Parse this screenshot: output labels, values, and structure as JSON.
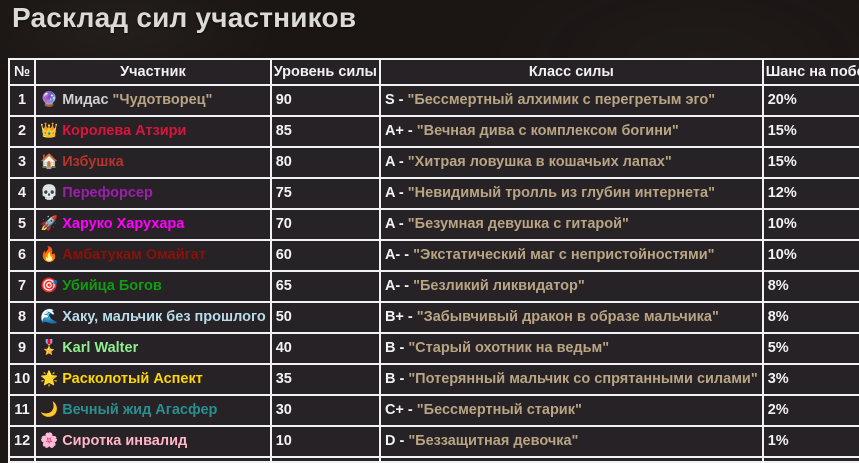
{
  "title": "Расклад сил участников",
  "table": {
    "headers": [
      "№",
      "Участник",
      "Уровень силы",
      "Класс силы",
      "Шанс на победу"
    ],
    "colors": {
      "border": "#f2f2f2",
      "cell_background": "#272226",
      "header_text": "#f2f2f2",
      "description_tan": "#b9a583"
    },
    "rows": [
      {
        "num": "1",
        "icon": "🔮",
        "icon_name": "crystal-ball-icon",
        "name": "Мидас",
        "name_color": "#cfcfcf",
        "nickname": "\"Чудотворец\"",
        "nickname_color": "#b9a583",
        "level": "90",
        "grade": "S",
        "desc": "\"Бессмертный алхимик с перегретым эго\"",
        "chance": "20%"
      },
      {
        "num": "2",
        "icon": "👑",
        "icon_name": "crown-icon",
        "name": "Королева Атзири",
        "name_color": "#dc143c",
        "nickname": "",
        "nickname_color": "",
        "level": "85",
        "grade": "A+",
        "desc": "\"Вечная дива с комплексом богини\"",
        "chance": "15%"
      },
      {
        "num": "3",
        "icon": "🏠",
        "icon_name": "house-icon",
        "name": "Избушка",
        "name_color": "#b5342c",
        "nickname": "",
        "nickname_color": "",
        "level": "80",
        "grade": "A",
        "desc": "\"Хитрая ловушка в кошачьих лапах\"",
        "chance": "15%"
      },
      {
        "num": "4",
        "icon": "💀",
        "icon_name": "skull-icon",
        "name": "Перефорсер",
        "name_color": "#9c1fae",
        "nickname": "",
        "nickname_color": "",
        "level": "75",
        "grade": "A",
        "desc": "\"Невидимый тролль из глубин интернета\"",
        "chance": "12%"
      },
      {
        "num": "5",
        "icon": "🚀",
        "icon_name": "rocket-icon",
        "name": "Харуко Харухара",
        "name_color": "#ff00ff",
        "nickname": "",
        "nickname_color": "",
        "level": "70",
        "grade": "A",
        "desc": "\"Безумная девушка с гитарой\"",
        "chance": "10%"
      },
      {
        "num": "6",
        "icon": "🔥",
        "icon_name": "fire-icon",
        "name": "Амбатукам Омайгат",
        "name_color": "#8b120b",
        "nickname": "",
        "nickname_color": "",
        "level": "60",
        "grade": "A-",
        "desc": "\"Экстатический маг с непристойностями\"",
        "chance": "10%"
      },
      {
        "num": "7",
        "icon": "🎯",
        "icon_name": "dart-target-icon",
        "name": "Убийца Богов",
        "name_color": "#119c11",
        "nickname": "",
        "nickname_color": "",
        "level": "65",
        "grade": "A-",
        "desc": "\"Безликий ликвидатор\"",
        "chance": "8%"
      },
      {
        "num": "8",
        "icon": "🌊",
        "icon_name": "water-wave-icon",
        "name": "Хаку, мальчик без прошлого",
        "name_color": "#b8dcea",
        "nickname": "",
        "nickname_color": "",
        "level": "50",
        "grade": "B+",
        "desc": "\"Забывчивый дракон в образе мальчика\"",
        "chance": "8%"
      },
      {
        "num": "9",
        "icon": "🎖️",
        "icon_name": "military-medal-icon",
        "name": "Karl Walter",
        "name_color": "#90ee90",
        "nickname": "",
        "nickname_color": "",
        "level": "40",
        "grade": "B",
        "desc": "\"Старый охотник на ведьм\"",
        "chance": "5%"
      },
      {
        "num": "10",
        "icon": "🌟",
        "icon_name": "glowing-star-icon",
        "name": "Расколотый Аспект",
        "name_color": "#ffd700",
        "nickname": "",
        "nickname_color": "",
        "level": "35",
        "grade": "B",
        "desc": "\"Потерянный мальчик со спрятанными силами\"",
        "chance": "3%"
      },
      {
        "num": "11",
        "icon": "🌙",
        "icon_name": "crescent-moon-icon",
        "name": "Вечный жид Агасфер",
        "name_color": "#2a8f8f",
        "nickname": "",
        "nickname_color": "",
        "level": "30",
        "grade": "C+",
        "desc": "\"Бессмертный старик\"",
        "chance": "2%"
      },
      {
        "num": "12",
        "icon": "🌸",
        "icon_name": "cherry-blossom-icon",
        "name": "Сиротка инвалид",
        "name_color": "#ffb6c8",
        "nickname": "",
        "nickname_color": "",
        "level": "10",
        "grade": "D",
        "desc": "\"Беззащитная девочка\"",
        "chance": "1%"
      }
    ]
  }
}
